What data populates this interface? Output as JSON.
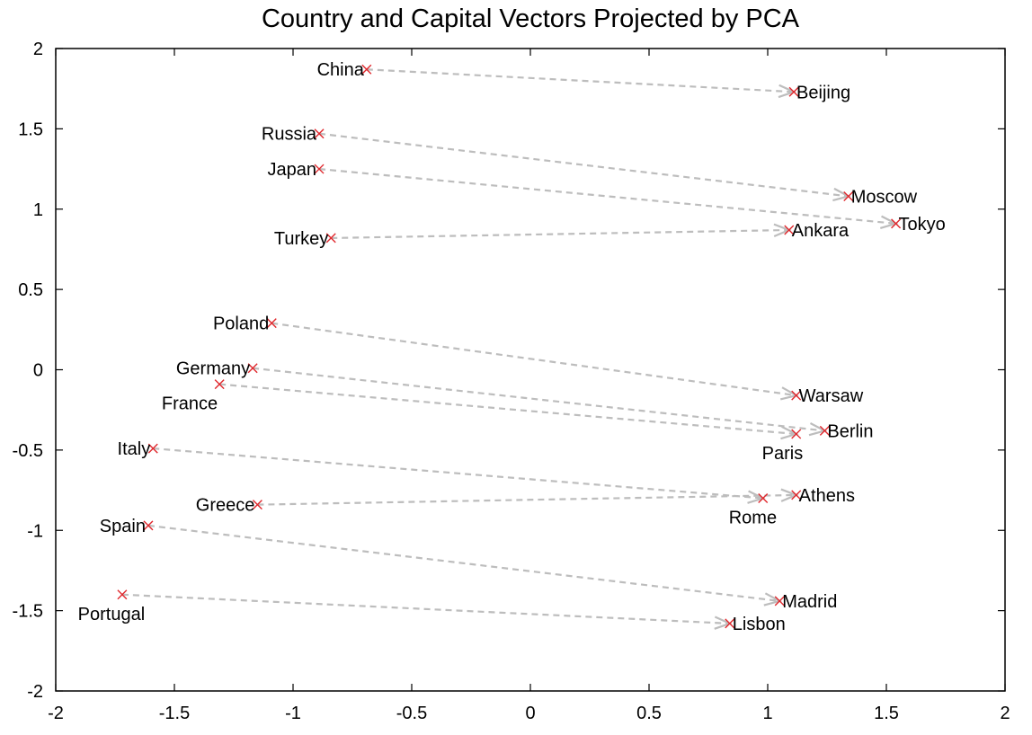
{
  "chart_data": {
    "type": "scatter",
    "title": "Country and Capital Vectors Projected by PCA",
    "xlabel": "",
    "ylabel": "",
    "xlim": [
      -2,
      2
    ],
    "ylim": [
      -2,
      2
    ],
    "x_ticks": [
      -2,
      -1.5,
      -1,
      -0.5,
      0,
      0.5,
      1,
      1.5,
      2
    ],
    "x_tick_labels": [
      "-2",
      "-1.5",
      "-1",
      "-0.5",
      "0",
      "0.5",
      "1",
      "1.5",
      "2"
    ],
    "y_ticks": [
      2,
      1.5,
      1,
      0.5,
      0,
      -0.5,
      -1,
      -1.5,
      -2
    ],
    "y_tick_labels": [
      "2",
      "1.5",
      "1",
      "0.5",
      "0",
      "-0.5",
      "-1",
      "-1.5",
      "-2"
    ],
    "grid": false,
    "colors": {
      "marker": "#e0282d",
      "arrow": "#bdbdbd"
    },
    "points": [
      {
        "label": "China",
        "x": -0.69,
        "y": 1.87,
        "label_pos": "left"
      },
      {
        "label": "Beijing",
        "x": 1.11,
        "y": 1.73,
        "label_pos": "right"
      },
      {
        "label": "Russia",
        "x": -0.89,
        "y": 1.47,
        "label_pos": "left"
      },
      {
        "label": "Moscow",
        "x": 1.34,
        "y": 1.08,
        "label_pos": "right"
      },
      {
        "label": "Japan",
        "x": -0.89,
        "y": 1.25,
        "label_pos": "left"
      },
      {
        "label": "Tokyo",
        "x": 1.54,
        "y": 0.91,
        "label_pos": "right"
      },
      {
        "label": "Turkey",
        "x": -0.84,
        "y": 0.82,
        "label_pos": "left"
      },
      {
        "label": "Ankara",
        "x": 1.09,
        "y": 0.87,
        "label_pos": "right"
      },
      {
        "label": "Poland",
        "x": -1.09,
        "y": 0.29,
        "label_pos": "left"
      },
      {
        "label": "Warsaw",
        "x": 1.12,
        "y": -0.16,
        "label_pos": "right"
      },
      {
        "label": "Germany",
        "x": -1.17,
        "y": 0.01,
        "label_pos": "left"
      },
      {
        "label": "Berlin",
        "x": 1.24,
        "y": -0.38,
        "label_pos": "right"
      },
      {
        "label": "France",
        "x": -1.31,
        "y": -0.09,
        "label_pos": "below-left"
      },
      {
        "label": "Paris",
        "x": 1.12,
        "y": -0.4,
        "label_pos": "below-right"
      },
      {
        "label": "Italy",
        "x": -1.59,
        "y": -0.49,
        "label_pos": "left"
      },
      {
        "label": "Rome",
        "x": 0.98,
        "y": -0.8,
        "label_pos": "below-right"
      },
      {
        "label": "Greece",
        "x": -1.15,
        "y": -0.84,
        "label_pos": "left"
      },
      {
        "label": "Athens",
        "x": 1.12,
        "y": -0.78,
        "label_pos": "right"
      },
      {
        "label": "Spain",
        "x": -1.61,
        "y": -0.97,
        "label_pos": "left"
      },
      {
        "label": "Madrid",
        "x": 1.05,
        "y": -1.44,
        "label_pos": "right"
      },
      {
        "label": "Portugal",
        "x": -1.72,
        "y": -1.4,
        "label_pos": "below-left"
      },
      {
        "label": "Lisbon",
        "x": 0.84,
        "y": -1.58,
        "label_pos": "right"
      }
    ],
    "arrows": [
      {
        "from": "China",
        "to": "Beijing"
      },
      {
        "from": "Russia",
        "to": "Moscow"
      },
      {
        "from": "Japan",
        "to": "Tokyo"
      },
      {
        "from": "Turkey",
        "to": "Ankara"
      },
      {
        "from": "Poland",
        "to": "Warsaw"
      },
      {
        "from": "Germany",
        "to": "Berlin"
      },
      {
        "from": "France",
        "to": "Paris"
      },
      {
        "from": "Italy",
        "to": "Rome"
      },
      {
        "from": "Greece",
        "to": "Athens"
      },
      {
        "from": "Spain",
        "to": "Madrid"
      },
      {
        "from": "Portugal",
        "to": "Lisbon"
      }
    ]
  }
}
